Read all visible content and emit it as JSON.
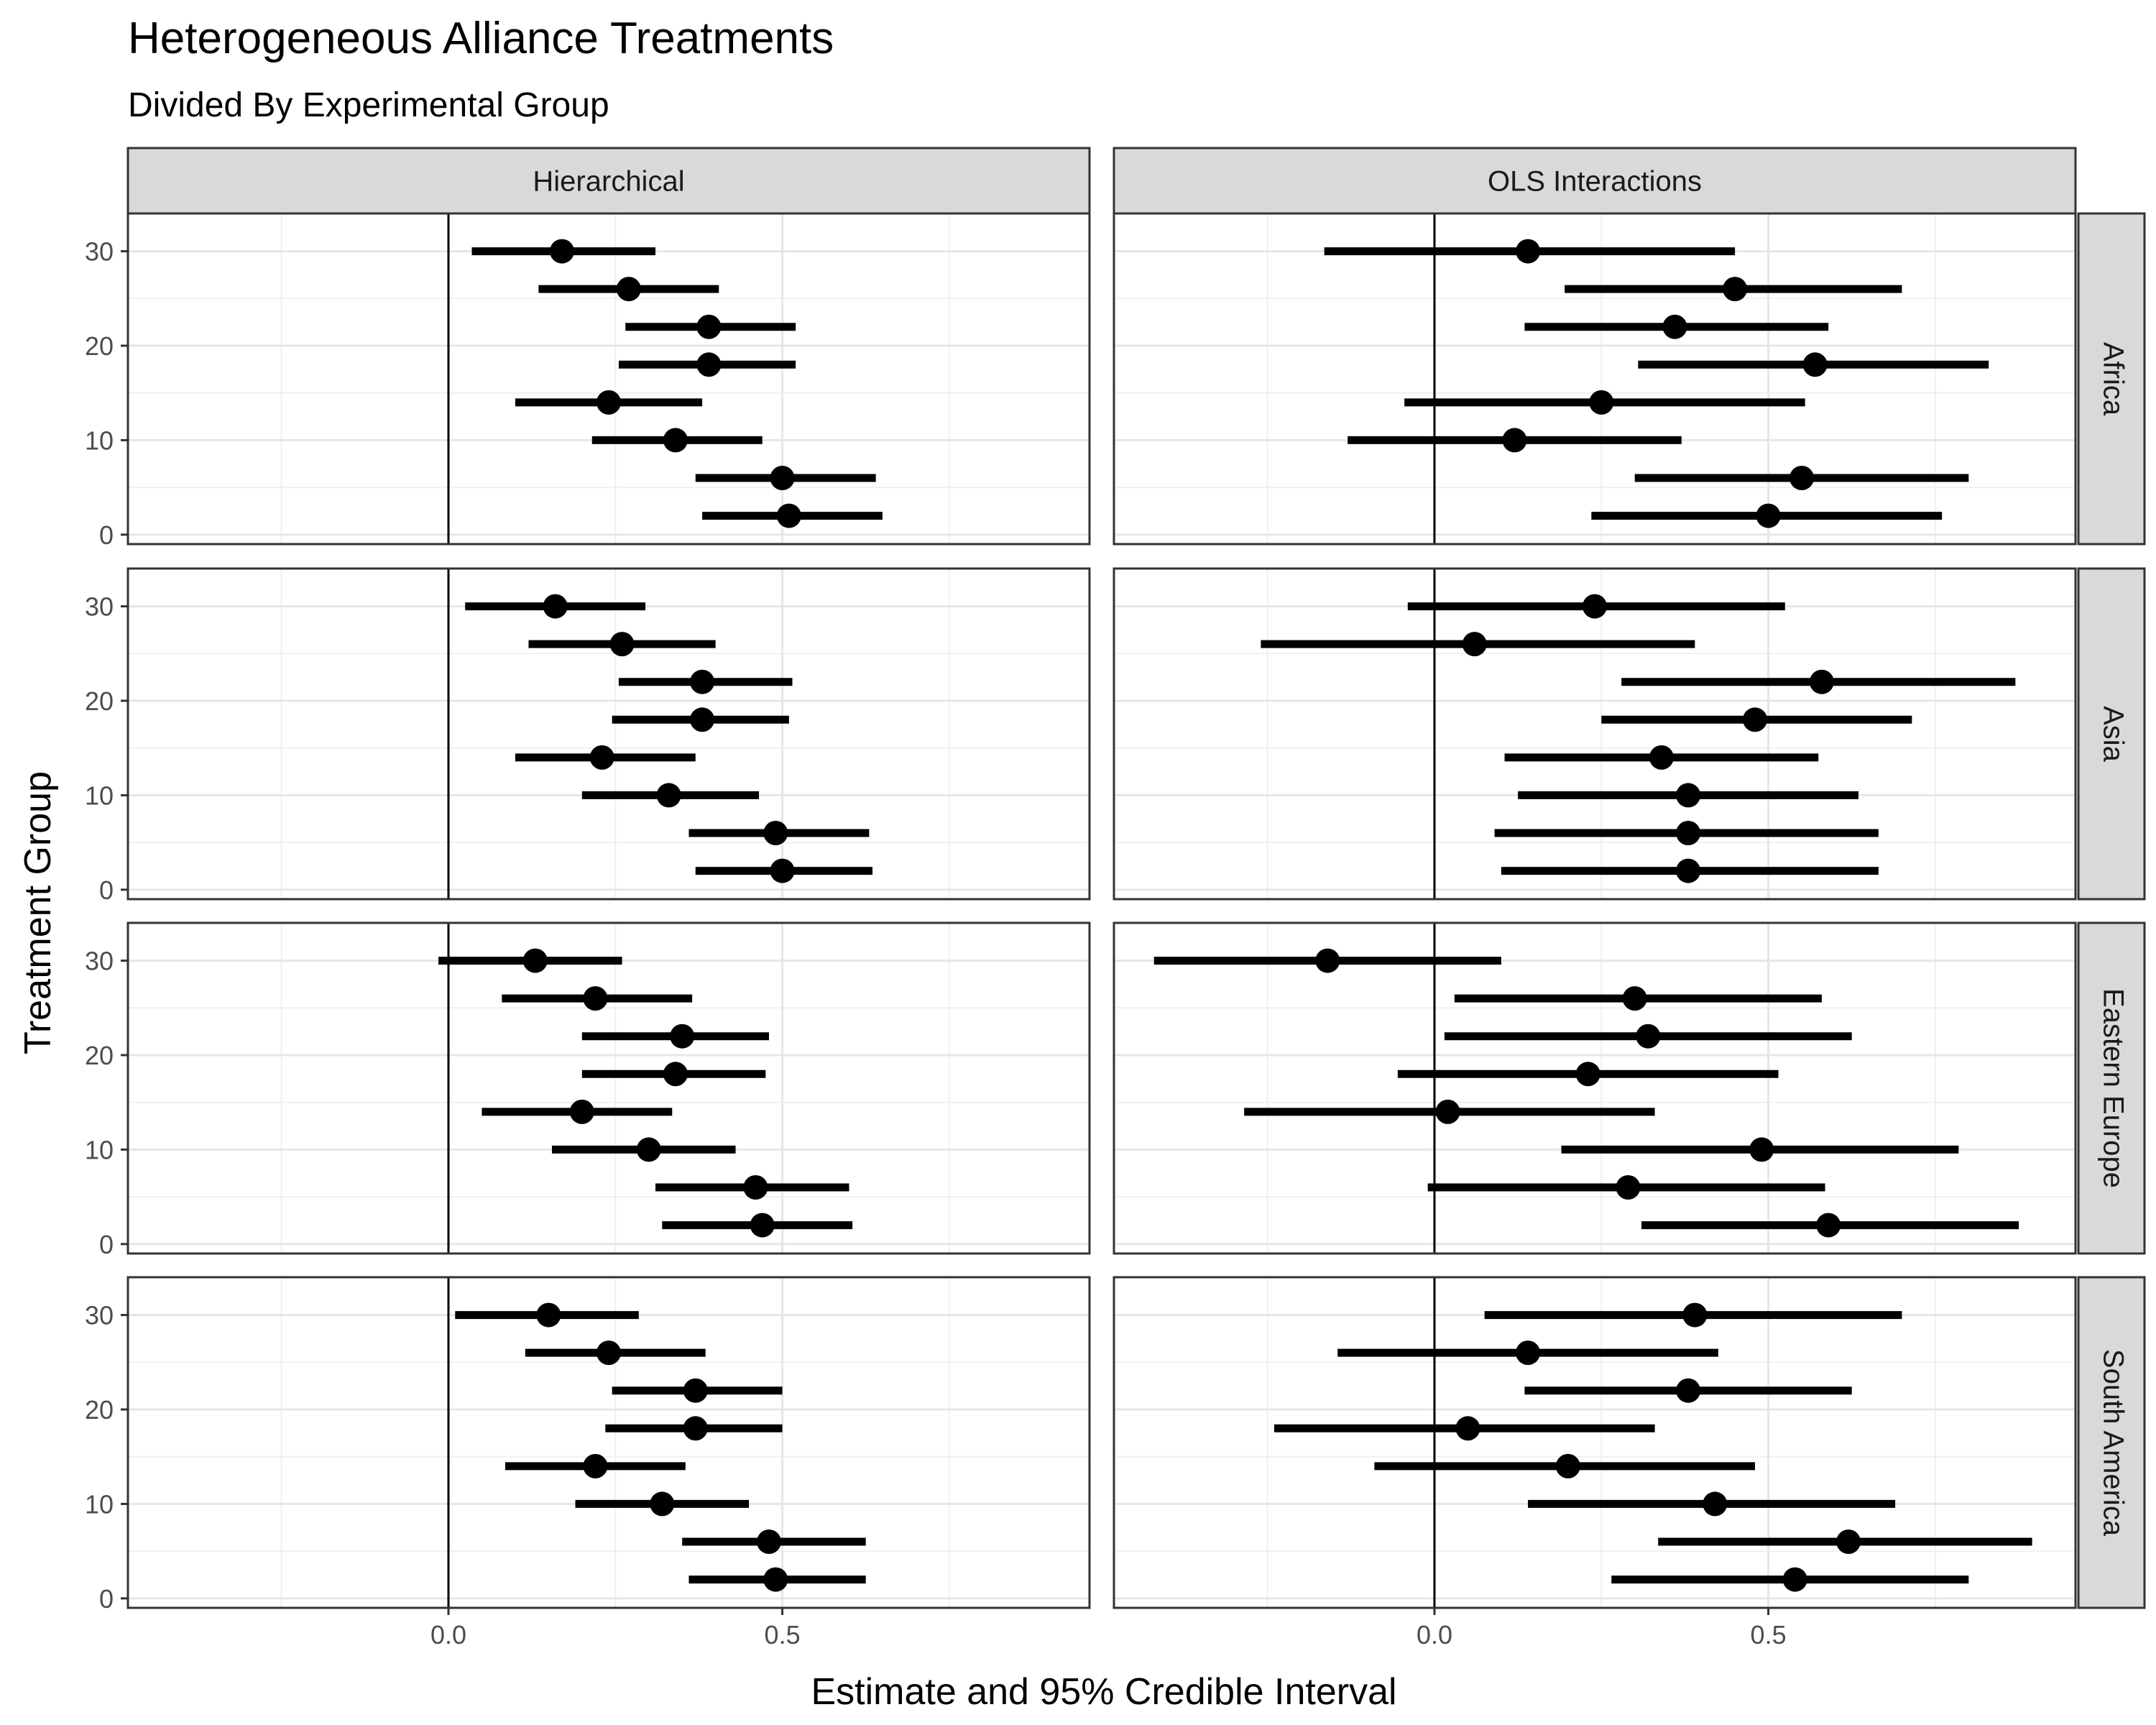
{
  "chart_data": {
    "type": "interval-dot",
    "title": "Heterogeneous Alliance Treatments",
    "subtitle": "Divided By Experimental Group",
    "xlabel": "Estimate and 95% Credible Interval",
    "ylabel": "Treatment Group",
    "xlim": [
      -0.48,
      0.96
    ],
    "ylim": [
      -1,
      34
    ],
    "xticks": [
      0.0,
      0.5
    ],
    "xtick_labels": [
      "0.0",
      "0.5"
    ],
    "yticks": [
      0,
      10,
      20,
      30
    ],
    "ytick_labels": [
      "0",
      "10",
      "20",
      "30"
    ],
    "grid": true,
    "reference_line_x": 0,
    "columns": [
      "Hierarchical",
      "OLS Interactions"
    ],
    "rows": [
      "Africa",
      "Asia",
      "Eastern Europe",
      "South America"
    ],
    "series": [
      {
        "row": "Africa",
        "column": "Hierarchical",
        "points": [
          {
            "y": 30,
            "est": 0.17,
            "lo": 0.035,
            "hi": 0.31
          },
          {
            "y": 26,
            "est": 0.27,
            "lo": 0.135,
            "hi": 0.405
          },
          {
            "y": 22,
            "est": 0.39,
            "lo": 0.265,
            "hi": 0.52
          },
          {
            "y": 18,
            "est": 0.39,
            "lo": 0.255,
            "hi": 0.52
          },
          {
            "y": 14,
            "est": 0.24,
            "lo": 0.1,
            "hi": 0.38
          },
          {
            "y": 10,
            "est": 0.34,
            "lo": 0.215,
            "hi": 0.47
          },
          {
            "y": 6,
            "est": 0.5,
            "lo": 0.37,
            "hi": 0.64
          },
          {
            "y": 2,
            "est": 0.51,
            "lo": 0.38,
            "hi": 0.65
          }
        ]
      },
      {
        "row": "Africa",
        "column": "OLS Interactions",
        "points": [
          {
            "y": 30,
            "est": 0.14,
            "lo": -0.165,
            "hi": 0.45
          },
          {
            "y": 26,
            "est": 0.45,
            "lo": 0.195,
            "hi": 0.7
          },
          {
            "y": 22,
            "est": 0.36,
            "lo": 0.135,
            "hi": 0.59
          },
          {
            "y": 18,
            "est": 0.57,
            "lo": 0.305,
            "hi": 0.83
          },
          {
            "y": 14,
            "est": 0.25,
            "lo": -0.045,
            "hi": 0.555
          },
          {
            "y": 10,
            "est": 0.12,
            "lo": -0.13,
            "hi": 0.37
          },
          {
            "y": 6,
            "est": 0.55,
            "lo": 0.3,
            "hi": 0.8
          },
          {
            "y": 2,
            "est": 0.5,
            "lo": 0.235,
            "hi": 0.76
          }
        ]
      },
      {
        "row": "Asia",
        "column": "Hierarchical",
        "points": [
          {
            "y": 30,
            "est": 0.16,
            "lo": 0.025,
            "hi": 0.295
          },
          {
            "y": 26,
            "est": 0.26,
            "lo": 0.12,
            "hi": 0.4
          },
          {
            "y": 22,
            "est": 0.38,
            "lo": 0.255,
            "hi": 0.515
          },
          {
            "y": 18,
            "est": 0.38,
            "lo": 0.245,
            "hi": 0.51
          },
          {
            "y": 14,
            "est": 0.23,
            "lo": 0.1,
            "hi": 0.37
          },
          {
            "y": 10,
            "est": 0.33,
            "lo": 0.2,
            "hi": 0.465
          },
          {
            "y": 6,
            "est": 0.49,
            "lo": 0.36,
            "hi": 0.63
          },
          {
            "y": 2,
            "est": 0.5,
            "lo": 0.37,
            "hi": 0.635
          }
        ]
      },
      {
        "row": "Asia",
        "column": "OLS Interactions",
        "points": [
          {
            "y": 30,
            "est": 0.24,
            "lo": -0.04,
            "hi": 0.525
          },
          {
            "y": 26,
            "est": 0.06,
            "lo": -0.26,
            "hi": 0.39
          },
          {
            "y": 22,
            "est": 0.58,
            "lo": 0.28,
            "hi": 0.87
          },
          {
            "y": 18,
            "est": 0.48,
            "lo": 0.25,
            "hi": 0.715
          },
          {
            "y": 14,
            "est": 0.34,
            "lo": 0.105,
            "hi": 0.575
          },
          {
            "y": 10,
            "est": 0.38,
            "lo": 0.125,
            "hi": 0.635
          },
          {
            "y": 6,
            "est": 0.38,
            "lo": 0.09,
            "hi": 0.665
          },
          {
            "y": 2,
            "est": 0.38,
            "lo": 0.1,
            "hi": 0.665
          }
        ]
      },
      {
        "row": "Eastern Europe",
        "column": "Hierarchical",
        "points": [
          {
            "y": 30,
            "est": 0.13,
            "lo": -0.015,
            "hi": 0.26
          },
          {
            "y": 26,
            "est": 0.22,
            "lo": 0.08,
            "hi": 0.365
          },
          {
            "y": 22,
            "est": 0.35,
            "lo": 0.2,
            "hi": 0.48
          },
          {
            "y": 18,
            "est": 0.34,
            "lo": 0.2,
            "hi": 0.475
          },
          {
            "y": 14,
            "est": 0.2,
            "lo": 0.05,
            "hi": 0.335
          },
          {
            "y": 10,
            "est": 0.3,
            "lo": 0.155,
            "hi": 0.43
          },
          {
            "y": 6,
            "est": 0.46,
            "lo": 0.31,
            "hi": 0.6
          },
          {
            "y": 2,
            "est": 0.47,
            "lo": 0.32,
            "hi": 0.605
          }
        ]
      },
      {
        "row": "Eastern Europe",
        "column": "OLS Interactions",
        "points": [
          {
            "y": 30,
            "est": -0.16,
            "lo": -0.42,
            "hi": 0.1
          },
          {
            "y": 26,
            "est": 0.3,
            "lo": 0.03,
            "hi": 0.58
          },
          {
            "y": 22,
            "est": 0.32,
            "lo": 0.015,
            "hi": 0.625
          },
          {
            "y": 18,
            "est": 0.23,
            "lo": -0.055,
            "hi": 0.515
          },
          {
            "y": 14,
            "est": 0.02,
            "lo": -0.285,
            "hi": 0.33
          },
          {
            "y": 10,
            "est": 0.49,
            "lo": 0.19,
            "hi": 0.785
          },
          {
            "y": 6,
            "est": 0.29,
            "lo": -0.01,
            "hi": 0.585
          },
          {
            "y": 2,
            "est": 0.59,
            "lo": 0.31,
            "hi": 0.875
          }
        ]
      },
      {
        "row": "South America",
        "column": "Hierarchical",
        "points": [
          {
            "y": 30,
            "est": 0.15,
            "lo": 0.01,
            "hi": 0.285
          },
          {
            "y": 26,
            "est": 0.24,
            "lo": 0.115,
            "hi": 0.385
          },
          {
            "y": 22,
            "est": 0.37,
            "lo": 0.245,
            "hi": 0.5
          },
          {
            "y": 18,
            "est": 0.37,
            "lo": 0.235,
            "hi": 0.5
          },
          {
            "y": 14,
            "est": 0.22,
            "lo": 0.085,
            "hi": 0.355
          },
          {
            "y": 10,
            "est": 0.32,
            "lo": 0.19,
            "hi": 0.45
          },
          {
            "y": 6,
            "est": 0.48,
            "lo": 0.35,
            "hi": 0.625
          },
          {
            "y": 2,
            "est": 0.49,
            "lo": 0.36,
            "hi": 0.625
          }
        ]
      },
      {
        "row": "South America",
        "column": "OLS Interactions",
        "points": [
          {
            "y": 30,
            "est": 0.39,
            "lo": 0.075,
            "hi": 0.7
          },
          {
            "y": 26,
            "est": 0.14,
            "lo": -0.145,
            "hi": 0.425
          },
          {
            "y": 22,
            "est": 0.38,
            "lo": 0.135,
            "hi": 0.625
          },
          {
            "y": 18,
            "est": 0.05,
            "lo": -0.24,
            "hi": 0.33
          },
          {
            "y": 14,
            "est": 0.2,
            "lo": -0.09,
            "hi": 0.48
          },
          {
            "y": 10,
            "est": 0.42,
            "lo": 0.14,
            "hi": 0.69
          },
          {
            "y": 6,
            "est": 0.62,
            "lo": 0.335,
            "hi": 0.895
          },
          {
            "y": 2,
            "est": 0.54,
            "lo": 0.265,
            "hi": 0.8
          }
        ]
      }
    ]
  }
}
